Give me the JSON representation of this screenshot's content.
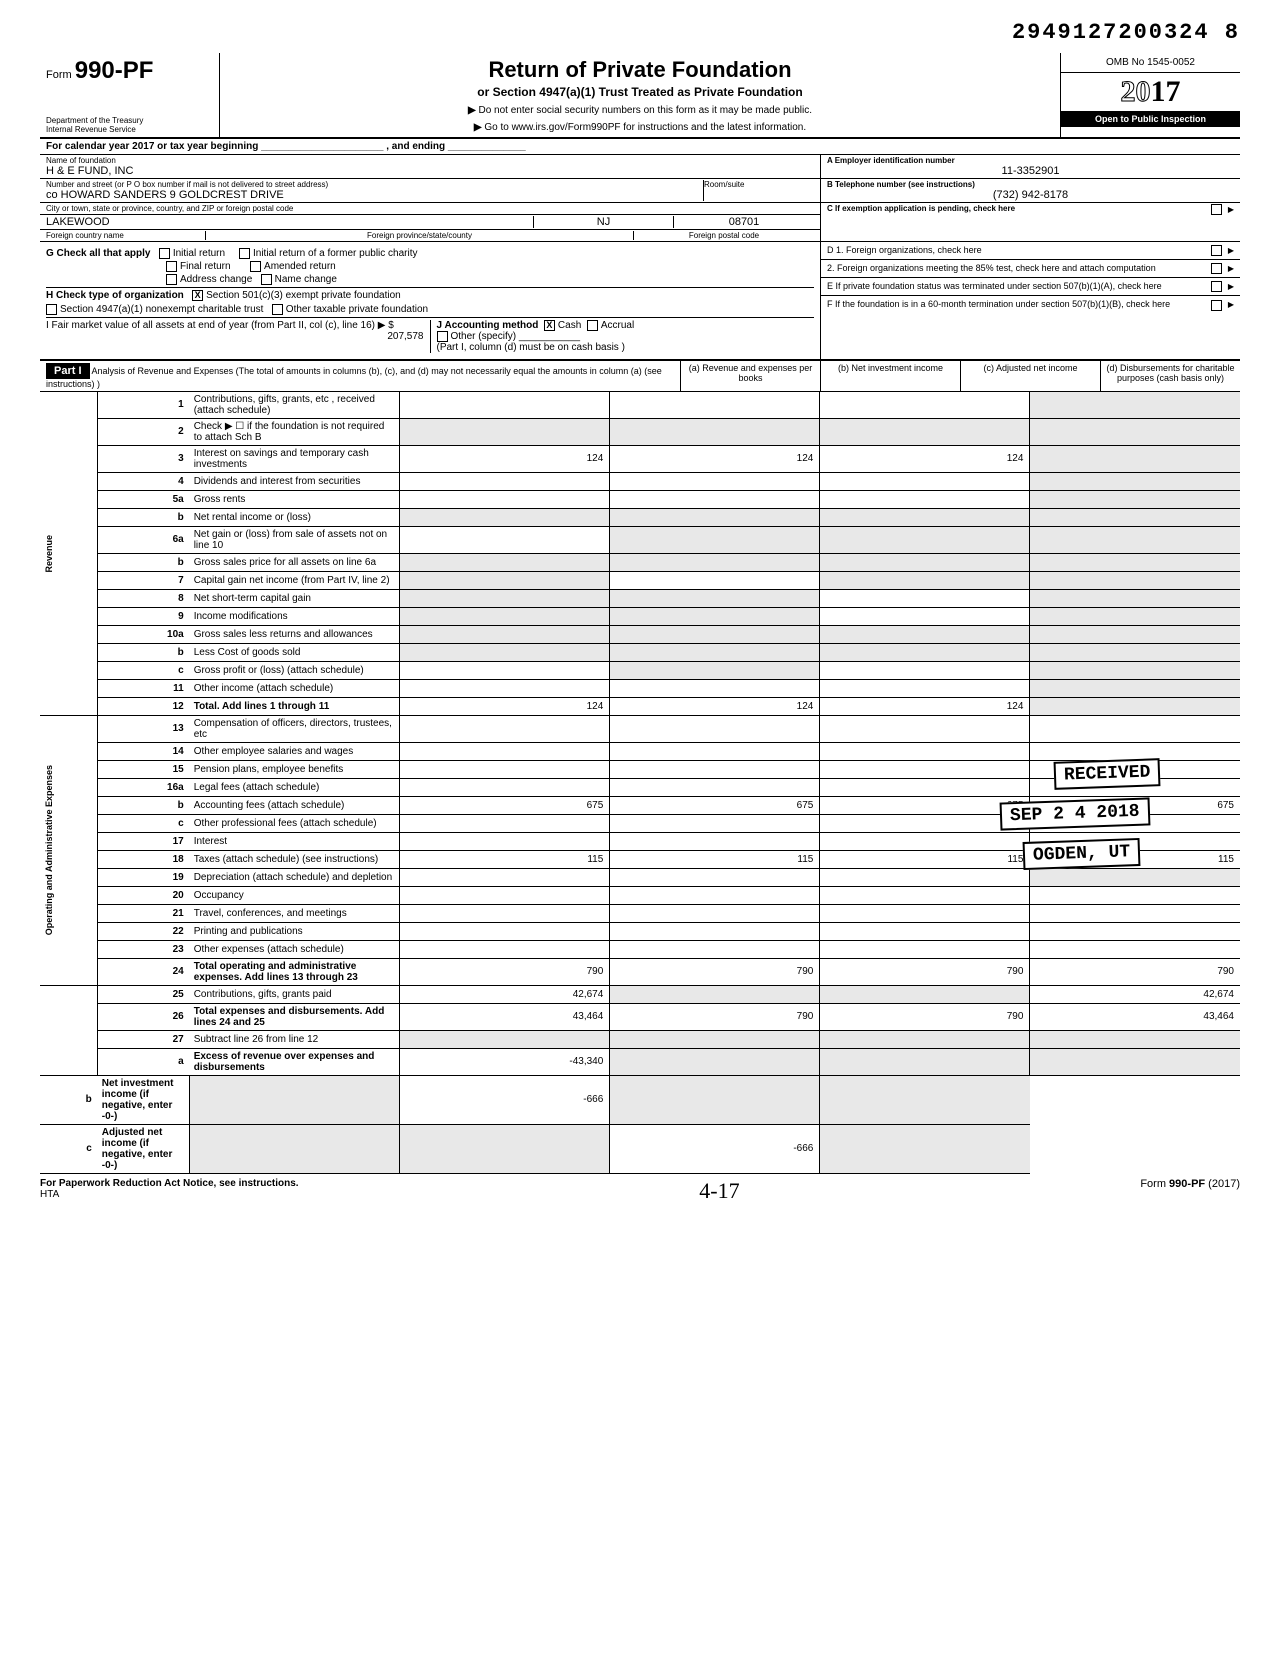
{
  "top_number": "2949127200324 8",
  "form": {
    "prefix": "Form",
    "number": "990-PF"
  },
  "dept": [
    "Department of the Treasury",
    "Internal Revenue Service"
  ],
  "title": "Return of Private Foundation",
  "subtitle": "or Section 4947(a)(1) Trust Treated as Private Foundation",
  "instr1": "Do not enter social security numbers on this form as it may be made public.",
  "instr2": "Go to www.irs.gov/Form990PF for instructions and the latest information.",
  "omb": "OMB No 1545-0052",
  "year": "2017",
  "open": "Open to Public Inspection",
  "cal": "For calendar year 2017 or tax year beginning ______________________ , and ending ______________",
  "ident": {
    "name_lbl": "Name of foundation",
    "name": "H & E FUND, INC",
    "addr_lbl": "Number and street (or P O  box number if mail is not delivered to street address)",
    "addr": "co HOWARD SANDERS 9 GOLDCREST DRIVE",
    "room_lbl": "Room/suite",
    "room": "",
    "city_lbl": "City or town, state or province, country, and ZIP or foreign postal code",
    "city": "LAKEWOOD",
    "state": "NJ",
    "zip": "08701",
    "foreign_lbl": "Foreign country name",
    "foreign_prov_lbl": "Foreign province/state/county",
    "foreign_postal_lbl": "Foreign postal code",
    "ein_lbl": "A  Employer identification number",
    "ein": "11-3352901",
    "tel_lbl": "B  Telephone number (see instructions)",
    "tel": "(732) 942-8178",
    "c_lbl": "C  If exemption application is pending, check here"
  },
  "g": {
    "lbl": "G  Check all that apply",
    "opts": [
      "Initial return",
      "Final return",
      "Address change",
      "Initial return of a former public charity",
      "Amended return",
      "Name change"
    ]
  },
  "h": {
    "lbl": "H  Check type of organization",
    "opt1": "Section 501(c)(3) exempt private foundation",
    "opt2": "Section 4947(a)(1) nonexempt charitable trust",
    "opt3": "Other taxable private foundation"
  },
  "i": {
    "lbl": "I   Fair market value of all assets at end of year (from Part II, col (c), line 16) ▶ $",
    "val": "207,578"
  },
  "j": {
    "lbl": "J   Accounting method",
    "cash": "Cash",
    "accrual": "Accrual",
    "other": "Other (specify)",
    "note": "(Part I, column (d) must be on cash basis )"
  },
  "right": {
    "d1": "D  1. Foreign organizations, check here",
    "d2": "2. Foreign organizations meeting the 85% test, check here and attach computation",
    "e": "E   If private foundation status was terminated under section 507(b)(1)(A), check here",
    "f": "F   If the foundation is in a 60-month termination under section 507(b)(1)(B), check here"
  },
  "part1": {
    "label": "Part I",
    "desc": "Analysis of Revenue and Expenses (The total of amounts in columns (b), (c), and (d) may not necessarily equal the amounts in column (a) (see instructions) )",
    "cols": [
      "(a) Revenue and expenses per books",
      "(b) Net investment income",
      "(c) Adjusted net income",
      "(d) Disbursements for charitable purposes (cash basis only)"
    ]
  },
  "sections": {
    "rev": "Revenue",
    "exp": "Operating and Administrative Expenses"
  },
  "rows": [
    {
      "n": "1",
      "l": "Contributions, gifts, grants, etc , received (attach schedule)",
      "a": "",
      "b": "",
      "c": "",
      "d": "shade"
    },
    {
      "n": "2",
      "l": "Check ▶ ☐ if the foundation is not required to attach Sch B",
      "a": "shade",
      "b": "shade",
      "c": "shade",
      "d": "shade"
    },
    {
      "n": "3",
      "l": "Interest on savings and temporary cash investments",
      "a": "124",
      "b": "124",
      "c": "124",
      "d": "shade"
    },
    {
      "n": "4",
      "l": "Dividends and interest from securities",
      "a": "",
      "b": "",
      "c": "",
      "d": "shade"
    },
    {
      "n": "5a",
      "l": "Gross rents",
      "a": "",
      "b": "",
      "c": "",
      "d": "shade"
    },
    {
      "n": "b",
      "l": "Net rental income or (loss)",
      "a": "shade",
      "b": "shade",
      "c": "shade",
      "d": "shade"
    },
    {
      "n": "6a",
      "l": "Net gain or (loss) from sale of assets not on line 10",
      "a": "",
      "b": "shade",
      "c": "shade",
      "d": "shade"
    },
    {
      "n": "b",
      "l": "Gross sales price for all assets on line 6a",
      "a": "shade",
      "b": "shade",
      "c": "shade",
      "d": "shade"
    },
    {
      "n": "7",
      "l": "Capital gain net income (from Part IV, line 2)",
      "a": "shade",
      "b": "",
      "c": "shade",
      "d": "shade"
    },
    {
      "n": "8",
      "l": "Net short-term capital gain",
      "a": "shade",
      "b": "shade",
      "c": "",
      "d": "shade"
    },
    {
      "n": "9",
      "l": "Income modifications",
      "a": "shade",
      "b": "shade",
      "c": "",
      "d": "shade"
    },
    {
      "n": "10a",
      "l": "Gross sales less returns and allowances",
      "a": "shade",
      "b": "shade",
      "c": "shade",
      "d": "shade"
    },
    {
      "n": "b",
      "l": "Less Cost of goods sold",
      "a": "shade",
      "b": "shade",
      "c": "shade",
      "d": "shade"
    },
    {
      "n": "c",
      "l": "Gross profit or (loss) (attach schedule)",
      "a": "",
      "b": "shade",
      "c": "",
      "d": "shade"
    },
    {
      "n": "11",
      "l": "Other income (attach schedule)",
      "a": "",
      "b": "",
      "c": "",
      "d": "shade"
    },
    {
      "n": "12",
      "l": "Total. Add lines 1 through 11",
      "a": "124",
      "b": "124",
      "c": "124",
      "d": "shade",
      "bold": true
    },
    {
      "n": "13",
      "l": "Compensation of officers, directors, trustees, etc",
      "a": "",
      "b": "",
      "c": "",
      "d": ""
    },
    {
      "n": "14",
      "l": "Other employee salaries and wages",
      "a": "",
      "b": "",
      "c": "",
      "d": ""
    },
    {
      "n": "15",
      "l": "Pension plans, employee benefits",
      "a": "",
      "b": "",
      "c": "",
      "d": ""
    },
    {
      "n": "16a",
      "l": "Legal fees (attach schedule)",
      "a": "",
      "b": "",
      "c": "",
      "d": ""
    },
    {
      "n": "b",
      "l": "Accounting fees (attach schedule)",
      "a": "675",
      "b": "675",
      "c": "675",
      "d": "675"
    },
    {
      "n": "c",
      "l": "Other professional fees (attach schedule)",
      "a": "",
      "b": "",
      "c": "",
      "d": ""
    },
    {
      "n": "17",
      "l": "Interest",
      "a": "",
      "b": "",
      "c": "",
      "d": ""
    },
    {
      "n": "18",
      "l": "Taxes (attach schedule) (see instructions)",
      "a": "115",
      "b": "115",
      "c": "115",
      "d": "115"
    },
    {
      "n": "19",
      "l": "Depreciation (attach schedule) and depletion",
      "a": "",
      "b": "",
      "c": "",
      "d": "shade"
    },
    {
      "n": "20",
      "l": "Occupancy",
      "a": "",
      "b": "",
      "c": "",
      "d": ""
    },
    {
      "n": "21",
      "l": "Travel, conferences, and meetings",
      "a": "",
      "b": "",
      "c": "",
      "d": ""
    },
    {
      "n": "22",
      "l": "Printing and publications",
      "a": "",
      "b": "",
      "c": "",
      "d": ""
    },
    {
      "n": "23",
      "l": "Other expenses (attach schedule)",
      "a": "",
      "b": "",
      "c": "",
      "d": ""
    },
    {
      "n": "24",
      "l": "Total operating and administrative expenses. Add lines 13 through 23",
      "a": "790",
      "b": "790",
      "c": "790",
      "d": "790",
      "bold": true
    },
    {
      "n": "25",
      "l": "Contributions, gifts, grants paid",
      "a": "42,674",
      "b": "shade",
      "c": "shade",
      "d": "42,674"
    },
    {
      "n": "26",
      "l": "Total expenses and disbursements. Add lines 24 and 25",
      "a": "43,464",
      "b": "790",
      "c": "790",
      "d": "43,464",
      "bold": true
    },
    {
      "n": "27",
      "l": "Subtract line 26 from line 12",
      "a": "shade",
      "b": "shade",
      "c": "shade",
      "d": "shade"
    },
    {
      "n": "a",
      "l": "Excess of revenue over expenses and disbursements",
      "a": "-43,340",
      "b": "shade",
      "c": "shade",
      "d": "shade",
      "bold": true
    },
    {
      "n": "b",
      "l": "Net investment income (if negative, enter -0-)",
      "a": "shade",
      "b": "-666",
      "c": "shade",
      "d": "shade",
      "bold": true
    },
    {
      "n": "c",
      "l": "Adjusted net income (if negative, enter -0-)",
      "a": "shade",
      "b": "shade",
      "c": "-666",
      "d": "shade",
      "bold": true
    }
  ],
  "stamps": {
    "received": "RECEIVED",
    "date": "SEP 2 4 2018",
    "ogden": "OGDEN, UT"
  },
  "footer": {
    "left": "For Paperwork Reduction Act Notice, see instructions.",
    "hta": "HTA",
    "hand": "4-17",
    "right": "Form 990-PF (2017)"
  }
}
